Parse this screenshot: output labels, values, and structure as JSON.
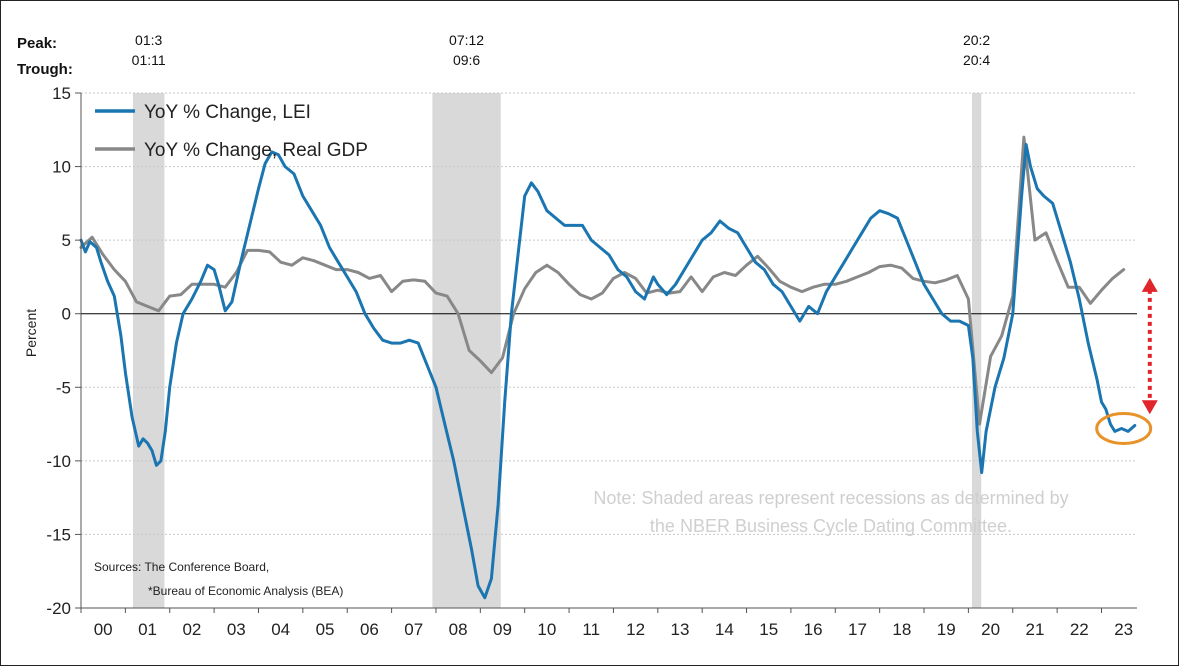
{
  "chart_data": {
    "type": "line",
    "title": "",
    "ylabel": "Percent",
    "xlabel": "",
    "ylim": [
      -20,
      15
    ],
    "yticks": [
      15,
      10,
      5,
      0,
      -5,
      -10,
      -15,
      -20
    ],
    "xlim": [
      2000.0,
      2023.8
    ],
    "x_tick_labels": [
      "00",
      "01",
      "02",
      "03",
      "04",
      "05",
      "06",
      "07",
      "08",
      "09",
      "10",
      "11",
      "12",
      "13",
      "14",
      "15",
      "16",
      "17",
      "18",
      "19",
      "20",
      "21",
      "22",
      "23"
    ],
    "grid": true,
    "legend_position": "top-left",
    "peak_label": "Peak:",
    "trough_label": "Trough:",
    "recessions": [
      {
        "peak": "01:3",
        "trough": "01:11",
        "start": 2001.17,
        "end": 2001.88
      },
      {
        "peak": "07:12",
        "trough": "09:6",
        "start": 2007.92,
        "end": 2009.46
      },
      {
        "peak": "20:2",
        "trough": "20:4",
        "start": 2020.08,
        "end": 2020.29
      }
    ],
    "note": [
      "Note: Shaded areas represent recessions as determined by",
      "the NBER Business Cycle Dating Committee."
    ],
    "sources": [
      "Sources: The Conference Board,",
      "*Bureau of Economic Analysis (BEA)"
    ],
    "series": [
      {
        "name": "YoY % Change, LEI",
        "color": "#1a75b0",
        "points": [
          [
            2000.0,
            5.0
          ],
          [
            2000.1,
            4.2
          ],
          [
            2000.2,
            4.9
          ],
          [
            2000.35,
            4.5
          ],
          [
            2000.45,
            3.5
          ],
          [
            2000.6,
            2.2
          ],
          [
            2000.75,
            1.2
          ],
          [
            2000.9,
            -1.5
          ],
          [
            2001.0,
            -4.0
          ],
          [
            2001.15,
            -7.0
          ],
          [
            2001.3,
            -9.0
          ],
          [
            2001.4,
            -8.5
          ],
          [
            2001.5,
            -8.8
          ],
          [
            2001.6,
            -9.3
          ],
          [
            2001.7,
            -10.3
          ],
          [
            2001.8,
            -10.0
          ],
          [
            2001.9,
            -8.0
          ],
          [
            2002.0,
            -5.0
          ],
          [
            2002.15,
            -2.0
          ],
          [
            2002.3,
            0.0
          ],
          [
            2002.5,
            1.0
          ],
          [
            2002.7,
            2.2
          ],
          [
            2002.85,
            3.3
          ],
          [
            2003.0,
            3.0
          ],
          [
            2003.1,
            2.0
          ],
          [
            2003.25,
            0.2
          ],
          [
            2003.4,
            0.8
          ],
          [
            2003.6,
            3.5
          ],
          [
            2003.8,
            6.0
          ],
          [
            2004.0,
            8.5
          ],
          [
            2004.15,
            10.2
          ],
          [
            2004.3,
            11.0
          ],
          [
            2004.45,
            10.8
          ],
          [
            2004.6,
            10.0
          ],
          [
            2004.8,
            9.5
          ],
          [
            2005.0,
            8.0
          ],
          [
            2005.2,
            7.0
          ],
          [
            2005.4,
            6.0
          ],
          [
            2005.6,
            4.5
          ],
          [
            2005.8,
            3.5
          ],
          [
            2006.0,
            2.5
          ],
          [
            2006.2,
            1.5
          ],
          [
            2006.4,
            0.0
          ],
          [
            2006.6,
            -1.0
          ],
          [
            2006.8,
            -1.8
          ],
          [
            2007.0,
            -2.0
          ],
          [
            2007.2,
            -2.0
          ],
          [
            2007.4,
            -1.8
          ],
          [
            2007.6,
            -2.0
          ],
          [
            2007.8,
            -3.5
          ],
          [
            2008.0,
            -5.0
          ],
          [
            2008.2,
            -7.5
          ],
          [
            2008.4,
            -10.0
          ],
          [
            2008.6,
            -13.0
          ],
          [
            2008.8,
            -16.0
          ],
          [
            2008.95,
            -18.5
          ],
          [
            2009.1,
            -19.3
          ],
          [
            2009.25,
            -18.0
          ],
          [
            2009.4,
            -13.0
          ],
          [
            2009.55,
            -6.0
          ],
          [
            2009.7,
            0.0
          ],
          [
            2009.85,
            4.0
          ],
          [
            2010.0,
            8.0
          ],
          [
            2010.15,
            8.9
          ],
          [
            2010.3,
            8.3
          ],
          [
            2010.5,
            7.0
          ],
          [
            2010.7,
            6.5
          ],
          [
            2010.9,
            6.0
          ],
          [
            2011.1,
            6.0
          ],
          [
            2011.3,
            6.0
          ],
          [
            2011.5,
            5.0
          ],
          [
            2011.7,
            4.5
          ],
          [
            2011.9,
            4.0
          ],
          [
            2012.1,
            3.0
          ],
          [
            2012.3,
            2.5
          ],
          [
            2012.5,
            1.5
          ],
          [
            2012.7,
            1.0
          ],
          [
            2012.9,
            2.5
          ],
          [
            2013.0,
            2.0
          ],
          [
            2013.2,
            1.3
          ],
          [
            2013.4,
            2.0
          ],
          [
            2013.6,
            3.0
          ],
          [
            2013.8,
            4.0
          ],
          [
            2014.0,
            5.0
          ],
          [
            2014.2,
            5.5
          ],
          [
            2014.4,
            6.3
          ],
          [
            2014.6,
            5.8
          ],
          [
            2014.8,
            5.5
          ],
          [
            2015.0,
            4.5
          ],
          [
            2015.2,
            3.5
          ],
          [
            2015.4,
            3.0
          ],
          [
            2015.6,
            2.0
          ],
          [
            2015.8,
            1.5
          ],
          [
            2016.0,
            0.5
          ],
          [
            2016.2,
            -0.5
          ],
          [
            2016.4,
            0.5
          ],
          [
            2016.6,
            0.0
          ],
          [
            2016.8,
            1.5
          ],
          [
            2017.0,
            2.5
          ],
          [
            2017.2,
            3.5
          ],
          [
            2017.4,
            4.5
          ],
          [
            2017.6,
            5.5
          ],
          [
            2017.8,
            6.5
          ],
          [
            2018.0,
            7.0
          ],
          [
            2018.2,
            6.8
          ],
          [
            2018.4,
            6.5
          ],
          [
            2018.6,
            5.0
          ],
          [
            2018.8,
            3.5
          ],
          [
            2019.0,
            2.0
          ],
          [
            2019.2,
            1.0
          ],
          [
            2019.4,
            0.0
          ],
          [
            2019.6,
            -0.5
          ],
          [
            2019.8,
            -0.5
          ],
          [
            2020.0,
            -0.8
          ],
          [
            2020.1,
            -3.0
          ],
          [
            2020.2,
            -8.0
          ],
          [
            2020.3,
            -10.8
          ],
          [
            2020.4,
            -8.0
          ],
          [
            2020.6,
            -5.0
          ],
          [
            2020.8,
            -3.0
          ],
          [
            2021.0,
            0.0
          ],
          [
            2021.1,
            4.0
          ],
          [
            2021.2,
            8.0
          ],
          [
            2021.3,
            11.5
          ],
          [
            2021.4,
            10.0
          ],
          [
            2021.55,
            8.5
          ],
          [
            2021.7,
            8.0
          ],
          [
            2021.9,
            7.5
          ],
          [
            2022.1,
            5.5
          ],
          [
            2022.3,
            3.5
          ],
          [
            2022.5,
            1.0
          ],
          [
            2022.7,
            -2.0
          ],
          [
            2022.9,
            -4.5
          ],
          [
            2023.0,
            -6.0
          ],
          [
            2023.1,
            -6.5
          ],
          [
            2023.2,
            -7.5
          ],
          [
            2023.3,
            -8.0
          ],
          [
            2023.45,
            -7.8
          ],
          [
            2023.6,
            -8.0
          ],
          [
            2023.75,
            -7.6
          ]
        ]
      },
      {
        "name": "YoY % Change, Real GDP",
        "color": "#888888",
        "points": [
          [
            2000.0,
            4.5
          ],
          [
            2000.25,
            5.2
          ],
          [
            2000.5,
            4.0
          ],
          [
            2000.75,
            3.0
          ],
          [
            2001.0,
            2.2
          ],
          [
            2001.25,
            0.8
          ],
          [
            2001.5,
            0.5
          ],
          [
            2001.75,
            0.2
          ],
          [
            2002.0,
            1.2
          ],
          [
            2002.25,
            1.3
          ],
          [
            2002.5,
            2.0
          ],
          [
            2002.75,
            2.0
          ],
          [
            2003.0,
            2.0
          ],
          [
            2003.25,
            1.8
          ],
          [
            2003.5,
            2.8
          ],
          [
            2003.75,
            4.3
          ],
          [
            2004.0,
            4.3
          ],
          [
            2004.25,
            4.2
          ],
          [
            2004.5,
            3.5
          ],
          [
            2004.75,
            3.3
          ],
          [
            2005.0,
            3.8
          ],
          [
            2005.25,
            3.6
          ],
          [
            2005.5,
            3.3
          ],
          [
            2005.75,
            3.0
          ],
          [
            2006.0,
            3.0
          ],
          [
            2006.25,
            2.8
          ],
          [
            2006.5,
            2.4
          ],
          [
            2006.75,
            2.6
          ],
          [
            2007.0,
            1.5
          ],
          [
            2007.25,
            2.2
          ],
          [
            2007.5,
            2.3
          ],
          [
            2007.75,
            2.2
          ],
          [
            2008.0,
            1.4
          ],
          [
            2008.25,
            1.2
          ],
          [
            2008.5,
            0.0
          ],
          [
            2008.75,
            -2.5
          ],
          [
            2009.0,
            -3.2
          ],
          [
            2009.25,
            -4.0
          ],
          [
            2009.5,
            -3.0
          ],
          [
            2009.75,
            0.0
          ],
          [
            2010.0,
            1.7
          ],
          [
            2010.25,
            2.8
          ],
          [
            2010.5,
            3.3
          ],
          [
            2010.75,
            2.8
          ],
          [
            2011.0,
            2.0
          ],
          [
            2011.25,
            1.3
          ],
          [
            2011.5,
            1.0
          ],
          [
            2011.75,
            1.4
          ],
          [
            2012.0,
            2.4
          ],
          [
            2012.25,
            2.8
          ],
          [
            2012.5,
            2.4
          ],
          [
            2012.75,
            1.4
          ],
          [
            2013.0,
            1.6
          ],
          [
            2013.25,
            1.4
          ],
          [
            2013.5,
            1.5
          ],
          [
            2013.75,
            2.5
          ],
          [
            2014.0,
            1.5
          ],
          [
            2014.25,
            2.5
          ],
          [
            2014.5,
            2.8
          ],
          [
            2014.75,
            2.6
          ],
          [
            2015.0,
            3.3
          ],
          [
            2015.25,
            3.9
          ],
          [
            2015.5,
            3.1
          ],
          [
            2015.75,
            2.2
          ],
          [
            2016.0,
            1.8
          ],
          [
            2016.25,
            1.5
          ],
          [
            2016.5,
            1.8
          ],
          [
            2016.75,
            2.0
          ],
          [
            2017.0,
            2.0
          ],
          [
            2017.25,
            2.2
          ],
          [
            2017.5,
            2.5
          ],
          [
            2017.75,
            2.8
          ],
          [
            2018.0,
            3.2
          ],
          [
            2018.25,
            3.3
          ],
          [
            2018.5,
            3.1
          ],
          [
            2018.75,
            2.4
          ],
          [
            2019.0,
            2.2
          ],
          [
            2019.25,
            2.1
          ],
          [
            2019.5,
            2.3
          ],
          [
            2019.75,
            2.6
          ],
          [
            2020.0,
            1.0
          ],
          [
            2020.25,
            -7.5
          ],
          [
            2020.5,
            -2.9
          ],
          [
            2020.75,
            -1.5
          ],
          [
            2021.0,
            1.2
          ],
          [
            2021.25,
            12.0
          ],
          [
            2021.5,
            5.0
          ],
          [
            2021.75,
            5.5
          ],
          [
            2022.0,
            3.6
          ],
          [
            2022.25,
            1.8
          ],
          [
            2022.5,
            1.8
          ],
          [
            2022.75,
            0.7
          ],
          [
            2023.0,
            1.6
          ],
          [
            2023.25,
            2.4
          ],
          [
            2023.5,
            3.0
          ]
        ]
      }
    ]
  }
}
